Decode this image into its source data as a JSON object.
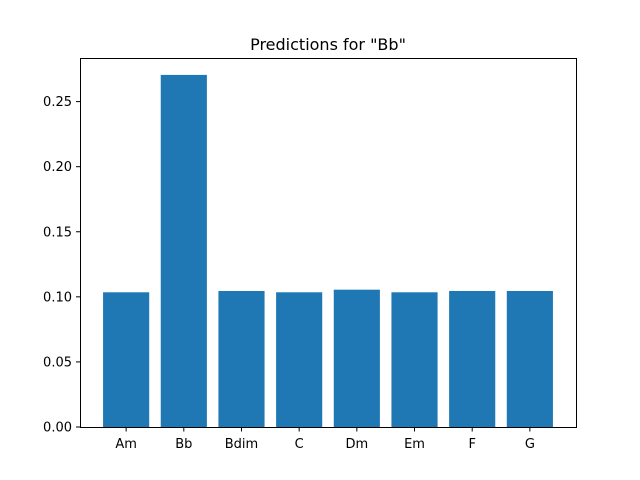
{
  "chart_data": {
    "type": "bar",
    "title": "Predictions for \"Bb\"",
    "xlabel": "",
    "ylabel": "",
    "categories": [
      "Am",
      "Bb",
      "Bdim",
      "C",
      "Dm",
      "Em",
      "F",
      "G"
    ],
    "values": [
      0.1035,
      0.2705,
      0.1045,
      0.1035,
      0.1055,
      0.1035,
      0.1045,
      0.1045
    ],
    "ylim": [
      0,
      0.2835
    ],
    "yticks": [
      0.0,
      0.05,
      0.1,
      0.15,
      0.2,
      0.25
    ],
    "ytick_labels": [
      "0.00",
      "0.05",
      "0.10",
      "0.15",
      "0.20",
      "0.25"
    ],
    "bar_color": "#1f77b4",
    "grid": false,
    "legend": "none"
  }
}
